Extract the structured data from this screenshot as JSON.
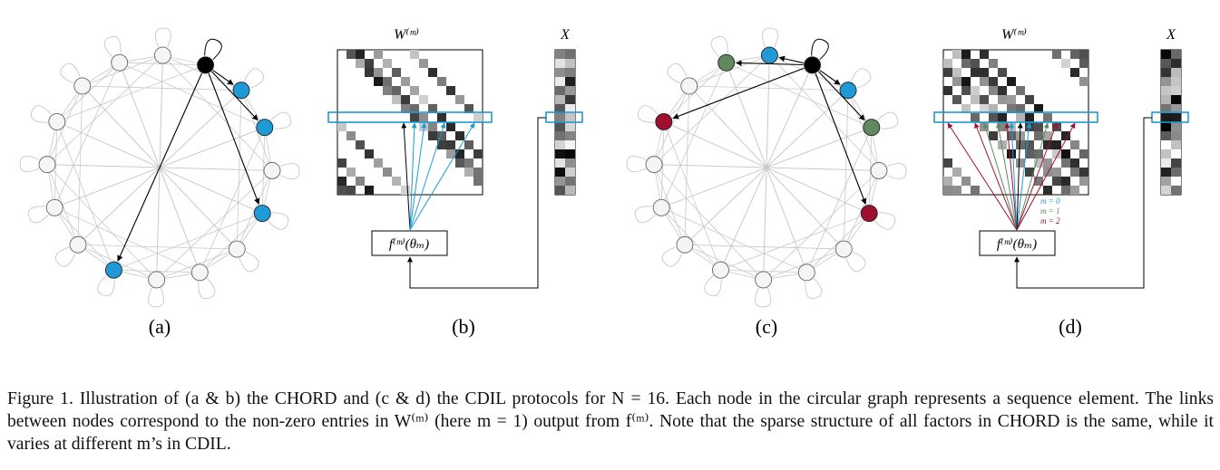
{
  "panels": {
    "a": "(a)",
    "b": "(b)",
    "c": "(c)",
    "d": "(d)"
  },
  "matrix_b": {
    "title": "W⁽ᵐ⁾",
    "vector_title": "X",
    "function_label": "f⁽ᵐ⁾(θₘ)"
  },
  "matrix_d": {
    "title": "W⁽ᵐ⁾",
    "vector_title": "X",
    "function_label": "f⁽ᵐ⁾(θₘ)",
    "legend": [
      "m = 0",
      "m = 1",
      "m = 2"
    ]
  },
  "colors": {
    "blue": "#1f9ad6",
    "green": "#5f8a5f",
    "red": "#a0102e",
    "black": "#000000",
    "node_white": "#f5f5f5",
    "edge_gray": "#c8c8c8"
  },
  "graph": {
    "node_count": "16"
  },
  "caption": {
    "line1": "Figure 1.  Illustration of (a & b) the CHORD and (c & d) the CDIL protocols for N = 16. Each node in the circular graph represents a",
    "line2": "sequence element.  The links between nodes correspond to the non-zero entries in W⁽ᵐ⁾ (here m = 1) output from f⁽ᵐ⁾. Note that the",
    "line3": "sparse structure of all factors in CHORD is the same, while it varies at different m’s in CDIL."
  }
}
